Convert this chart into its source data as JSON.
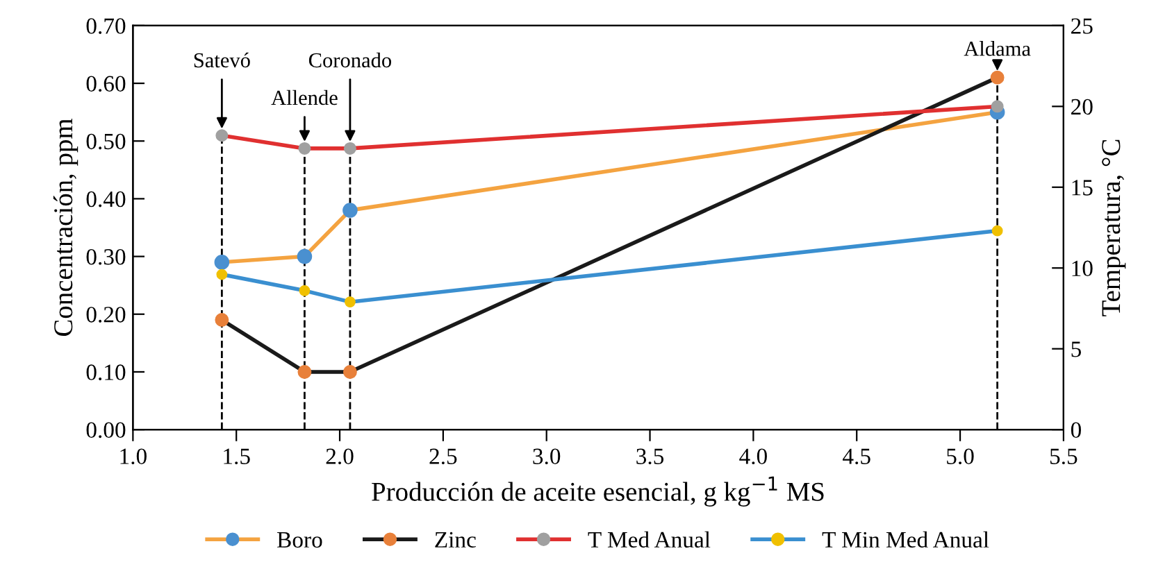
{
  "chart_data": {
    "type": "line",
    "xlabel": "Producción de aceite esencial, g kg$^{−1}$ MS",
    "ylabel": "Concentración, ppm",
    "y2label": "Temperatura, °C",
    "x": [
      1.43,
      1.83,
      2.05,
      5.18
    ],
    "series": [
      {
        "name": "Boro",
        "color": "#f4a340",
        "colors": [
          "#4a90d0",
          "#4a90d0",
          "#4a90d0",
          "#4a90d0"
        ],
        "values": [
          0.29,
          0.3,
          0.38,
          0.55
        ]
      },
      {
        "name": "Zinc",
        "color": "#1a1a1a",
        "colors": [
          "#e8803a",
          "#e8803a",
          "#e8803a",
          "#e8803a"
        ],
        "values": [
          0.19,
          0.1,
          0.1,
          0.61
        ]
      },
      {
        "name": "T Med Anual",
        "color": "#e03030",
        "colors": [
          "#a0a0a0",
          "#a0a0a0",
          "#a0a0a0",
          "#a0a0a0"
        ],
        "values": [
          18.2,
          17.4,
          17.4,
          20.0
        ],
        "axis": "y2"
      },
      {
        "name": "T Min Med Anual",
        "color": "#3a8fd0",
        "colors": [
          "#f0c000",
          "#f0c000",
          "#f0c000",
          "#f0c000"
        ],
        "values": [
          9.6,
          8.6,
          7.9,
          12.3
        ],
        "axis": "y2"
      }
    ],
    "xlim": [
      1.0,
      5.5
    ],
    "xticks": [
      {
        "value": 1.0,
        "label": "1.0"
      },
      {
        "value": 1.5,
        "label": "1.5"
      },
      {
        "value": 2.0,
        "label": "2.0"
      },
      {
        "value": 2.5,
        "label": "2.5"
      },
      {
        "value": 3.0,
        "label": "3.0"
      },
      {
        "value": 3.5,
        "label": "3.5"
      },
      {
        "value": 4.0,
        "label": "4.0"
      },
      {
        "value": 4.5,
        "label": "4.5"
      },
      {
        "value": 5.0,
        "label": "5.0"
      },
      {
        "value": 5.5,
        "label": "5.5"
      }
    ],
    "ylim": [
      0,
      0.7
    ],
    "yticks": [
      {
        "value": 0,
        "label": "0.00"
      },
      {
        "value": 0.1,
        "label": "0.10"
      },
      {
        "value": 0.2,
        "label": "0.20"
      },
      {
        "value": 0.3,
        "label": "0.30"
      },
      {
        "value": 0.4,
        "label": "0.40"
      },
      {
        "value": 0.5,
        "label": "0.50"
      },
      {
        "value": 0.6,
        "label": "0.60"
      },
      {
        "value": 0.7,
        "label": "0.70"
      }
    ],
    "y2lim": [
      0,
      25
    ],
    "y2ticks": [
      0,
      5,
      10,
      15,
      20,
      25
    ],
    "ref_lines": [
      {
        "axis": "x",
        "value": 1.43,
        "label": "Satevó",
        "color": "#000000",
        "line_style": "dashed"
      },
      {
        "axis": "x",
        "value": 1.83,
        "label": "Allende",
        "color": "#000000",
        "line_style": "dashed"
      },
      {
        "axis": "x",
        "value": 2.05,
        "label": "Coronado",
        "color": "#000000",
        "line_style": "dashed"
      },
      {
        "axis": "x",
        "value": 5.18,
        "label": "Aldama",
        "color": "#000000",
        "line_style": "dashed"
      }
    ],
    "marker": "circle",
    "line_style": "solid",
    "grid": false,
    "legend": "bottom"
  }
}
